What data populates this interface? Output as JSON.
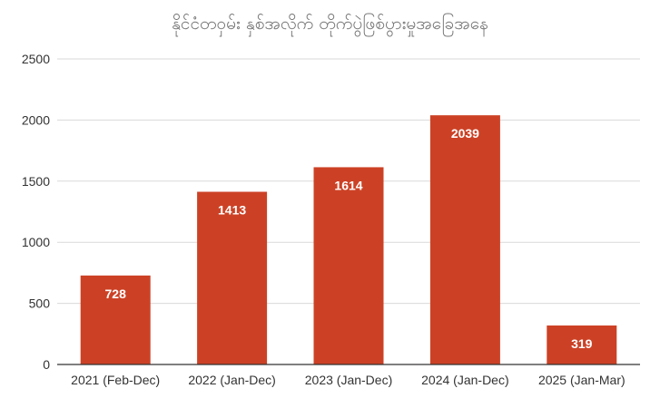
{
  "chart_data": {
    "type": "bar",
    "title": "နိုင်ငံတဝှမ်း နှစ်အလိုက် တိုက်ပွဲဖြစ်ပွားမှုအခြေအနေ",
    "xlabel": "",
    "ylabel": "",
    "categories": [
      "2021 (Feb-Dec)",
      "2022 (Jan-Dec)",
      "2023 (Jan-Dec)",
      "2024 (Jan-Dec)",
      "2025 (Jan-Mar)"
    ],
    "values": [
      728,
      1413,
      1614,
      2039,
      319
    ],
    "ylim": [
      0,
      2500
    ],
    "yticks": [
      0,
      500,
      1000,
      1500,
      2000,
      2500
    ],
    "grid": true,
    "legend": "none",
    "data_labels": true,
    "colors": {
      "bar": "#cc4125",
      "grid": "#d9d9d9",
      "axis": "#333333",
      "title": "#757575",
      "label_text": "#ffffff"
    }
  }
}
